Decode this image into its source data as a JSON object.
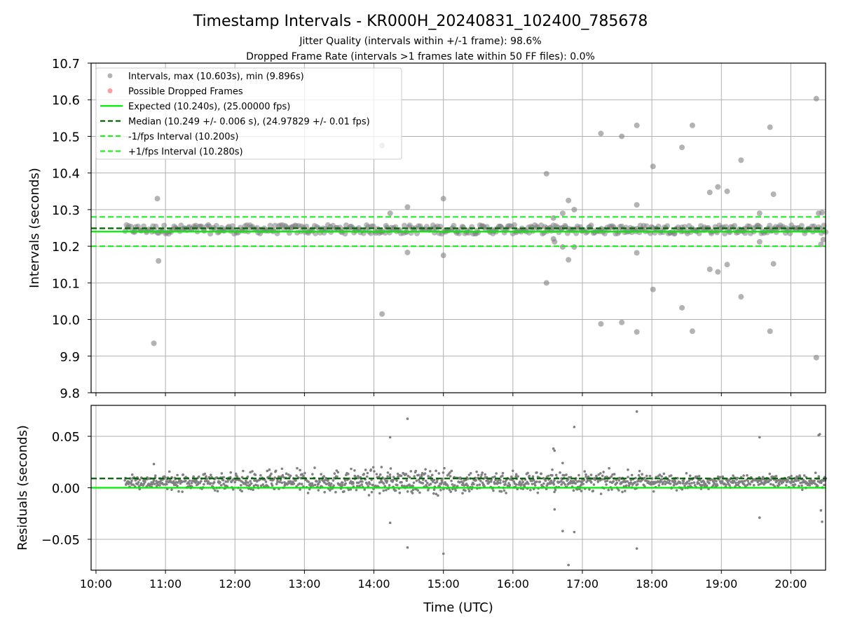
{
  "title": "Timestamp Intervals - KR000H_20240831_102400_785678",
  "subtitle_1": "Jitter Quality (intervals within +/-1 frame): 98.6%",
  "subtitle_2": "Dropped Frame Rate (intervals >1 frames late within 50 FF files): 0.0%",
  "colors": {
    "points": "#808080",
    "dropped": "#ff5a5a",
    "expected": "#00ee00",
    "median": "#006400",
    "fps_band": "#22ee22",
    "grid": "#b0b0b0"
  },
  "chart_data": [
    {
      "type": "scatter",
      "name": "intervals-panel",
      "ylabel": "Intervals (seconds)",
      "xlabel": "",
      "ylim": [
        9.8,
        10.7
      ],
      "yticks": [
        9.8,
        9.9,
        10.0,
        10.1,
        10.2,
        10.3,
        10.4,
        10.5,
        10.6,
        10.7
      ],
      "ytick_labels": [
        "9.8",
        "9.9",
        "10.0",
        "10.1",
        "10.2",
        "10.3",
        "10.4",
        "10.5",
        "10.6",
        "10.7"
      ],
      "x_range_hours": [
        9.93,
        20.5
      ],
      "grid": true,
      "legend_position": "top-left",
      "legend": [
        {
          "label": "Intervals, max (10.603s), min (9.896s)",
          "kind": "point",
          "color": "#808080"
        },
        {
          "label": "Possible Dropped Frames",
          "kind": "point",
          "color": "#ff5a5a"
        },
        {
          "label": "Expected (10.240s), (25.00000 fps)",
          "kind": "solid",
          "color": "#00ee00"
        },
        {
          "label": "Median (10.249 +/- 0.006 s), (24.97829 +/- 0.01 fps)",
          "kind": "dashed",
          "color": "#006400"
        },
        {
          "label": "-1/fps Interval (10.200s)",
          "kind": "dashed",
          "color": "#22ee22"
        },
        {
          "label": "+1/fps Interval (10.280s)",
          "kind": "dashed",
          "color": "#22ee22"
        }
      ],
      "hlines": [
        {
          "y": 10.24,
          "style": "solid",
          "color": "#00ee00"
        },
        {
          "y": 10.249,
          "style": "dashed",
          "color": "#006400"
        },
        {
          "y": 10.2,
          "style": "dashed",
          "color": "#22ee22"
        },
        {
          "y": 10.28,
          "style": "dashed",
          "color": "#22ee22"
        }
      ],
      "bulk_band": {
        "x_start": "10:25",
        "x_end": "20:30",
        "center": 10.246,
        "spread": 0.012,
        "count": 500
      },
      "outliers": [
        {
          "x": "10:50",
          "y": 9.935
        },
        {
          "x": "10:53",
          "y": 10.33
        },
        {
          "x": "10:54",
          "y": 10.16
        },
        {
          "x": "14:07",
          "y": 10.475
        },
        {
          "x": "14:07",
          "y": 10.015
        },
        {
          "x": "14:14",
          "y": 10.29
        },
        {
          "x": "14:29",
          "y": 10.307
        },
        {
          "x": "14:29",
          "y": 10.183
        },
        {
          "x": "15:00",
          "y": 10.33
        },
        {
          "x": "15:00",
          "y": 10.175
        },
        {
          "x": "16:29",
          "y": 10.398
        },
        {
          "x": "16:29",
          "y": 10.1
        },
        {
          "x": "16:35",
          "y": 10.277
        },
        {
          "x": "16:35",
          "y": 10.22
        },
        {
          "x": "16:36",
          "y": 10.212
        },
        {
          "x": "16:43",
          "y": 10.29
        },
        {
          "x": "16:43",
          "y": 10.198
        },
        {
          "x": "16:48",
          "y": 10.325
        },
        {
          "x": "16:48",
          "y": 10.163
        },
        {
          "x": "16:53",
          "y": 10.3
        },
        {
          "x": "16:53",
          "y": 10.198
        },
        {
          "x": "17:16",
          "y": 10.508
        },
        {
          "x": "17:16",
          "y": 9.988
        },
        {
          "x": "17:34",
          "y": 10.5
        },
        {
          "x": "17:34",
          "y": 9.992
        },
        {
          "x": "17:47",
          "y": 10.53
        },
        {
          "x": "17:47",
          "y": 9.966
        },
        {
          "x": "17:47",
          "y": 10.313
        },
        {
          "x": "17:47",
          "y": 10.182
        },
        {
          "x": "18:01",
          "y": 10.418
        },
        {
          "x": "18:01",
          "y": 10.082
        },
        {
          "x": "18:26",
          "y": 10.47
        },
        {
          "x": "18:26",
          "y": 10.032
        },
        {
          "x": "18:35",
          "y": 10.53
        },
        {
          "x": "18:35",
          "y": 9.968
        },
        {
          "x": "18:50",
          "y": 10.347
        },
        {
          "x": "18:50",
          "y": 10.137
        },
        {
          "x": "18:57",
          "y": 10.362
        },
        {
          "x": "18:57",
          "y": 10.13
        },
        {
          "x": "19:05",
          "y": 10.35
        },
        {
          "x": "19:05",
          "y": 10.15
        },
        {
          "x": "19:17",
          "y": 10.435
        },
        {
          "x": "19:17",
          "y": 10.062
        },
        {
          "x": "19:33",
          "y": 10.29
        },
        {
          "x": "19:33",
          "y": 10.212
        },
        {
          "x": "19:42",
          "y": 10.525
        },
        {
          "x": "19:42",
          "y": 9.968
        },
        {
          "x": "19:45",
          "y": 10.342
        },
        {
          "x": "19:45",
          "y": 10.152
        },
        {
          "x": "20:22",
          "y": 10.603
        },
        {
          "x": "20:22",
          "y": 9.896
        },
        {
          "x": "20:24",
          "y": 10.29
        },
        {
          "x": "20:27",
          "y": 10.292
        },
        {
          "x": "20:26",
          "y": 10.205
        },
        {
          "x": "20:28",
          "y": 10.218
        }
      ]
    },
    {
      "type": "scatter",
      "name": "residuals-panel",
      "ylabel": "Residuals (seconds)",
      "xlabel": "Time (UTC)",
      "ylim": [
        -0.08,
        0.08
      ],
      "yticks": [
        -0.05,
        0.0,
        0.05
      ],
      "ytick_labels": [
        "−0.05",
        "0.00",
        "0.05"
      ],
      "x_range_hours": [
        9.93,
        20.5
      ],
      "x_ticks": [
        "10:00",
        "11:00",
        "12:00",
        "13:00",
        "14:00",
        "15:00",
        "16:00",
        "17:00",
        "18:00",
        "19:00",
        "20:00"
      ],
      "grid": true,
      "hlines": [
        {
          "y": 0.0,
          "style": "solid",
          "color": "#00ee00"
        },
        {
          "y": 0.009,
          "style": "dashed",
          "color": "#006400"
        }
      ],
      "bulk_band": {
        "x_start": "10:25",
        "x_end": "20:30",
        "center": 0.006,
        "spread": 0.01,
        "count": 1400
      },
      "outliers": [
        {
          "x": "10:50",
          "y": 0.023
        },
        {
          "x": "14:14",
          "y": 0.049
        },
        {
          "x": "14:14",
          "y": -0.034
        },
        {
          "x": "14:29",
          "y": 0.067
        },
        {
          "x": "14:29",
          "y": -0.058
        },
        {
          "x": "15:00",
          "y": -0.064
        },
        {
          "x": "16:35",
          "y": 0.038
        },
        {
          "x": "16:36",
          "y": 0.036
        },
        {
          "x": "16:36",
          "y": -0.021
        },
        {
          "x": "16:43",
          "y": 0.024
        },
        {
          "x": "16:43",
          "y": -0.042
        },
        {
          "x": "16:48",
          "y": -0.075
        },
        {
          "x": "16:53",
          "y": 0.059
        },
        {
          "x": "16:53",
          "y": -0.043
        },
        {
          "x": "17:47",
          "y": 0.074
        },
        {
          "x": "17:47",
          "y": -0.059
        },
        {
          "x": "19:33",
          "y": 0.049
        },
        {
          "x": "19:33",
          "y": -0.029
        },
        {
          "x": "20:24",
          "y": 0.051
        },
        {
          "x": "20:25",
          "y": 0.052
        },
        {
          "x": "20:26",
          "y": -0.022
        },
        {
          "x": "20:27",
          "y": -0.033
        }
      ]
    }
  ]
}
